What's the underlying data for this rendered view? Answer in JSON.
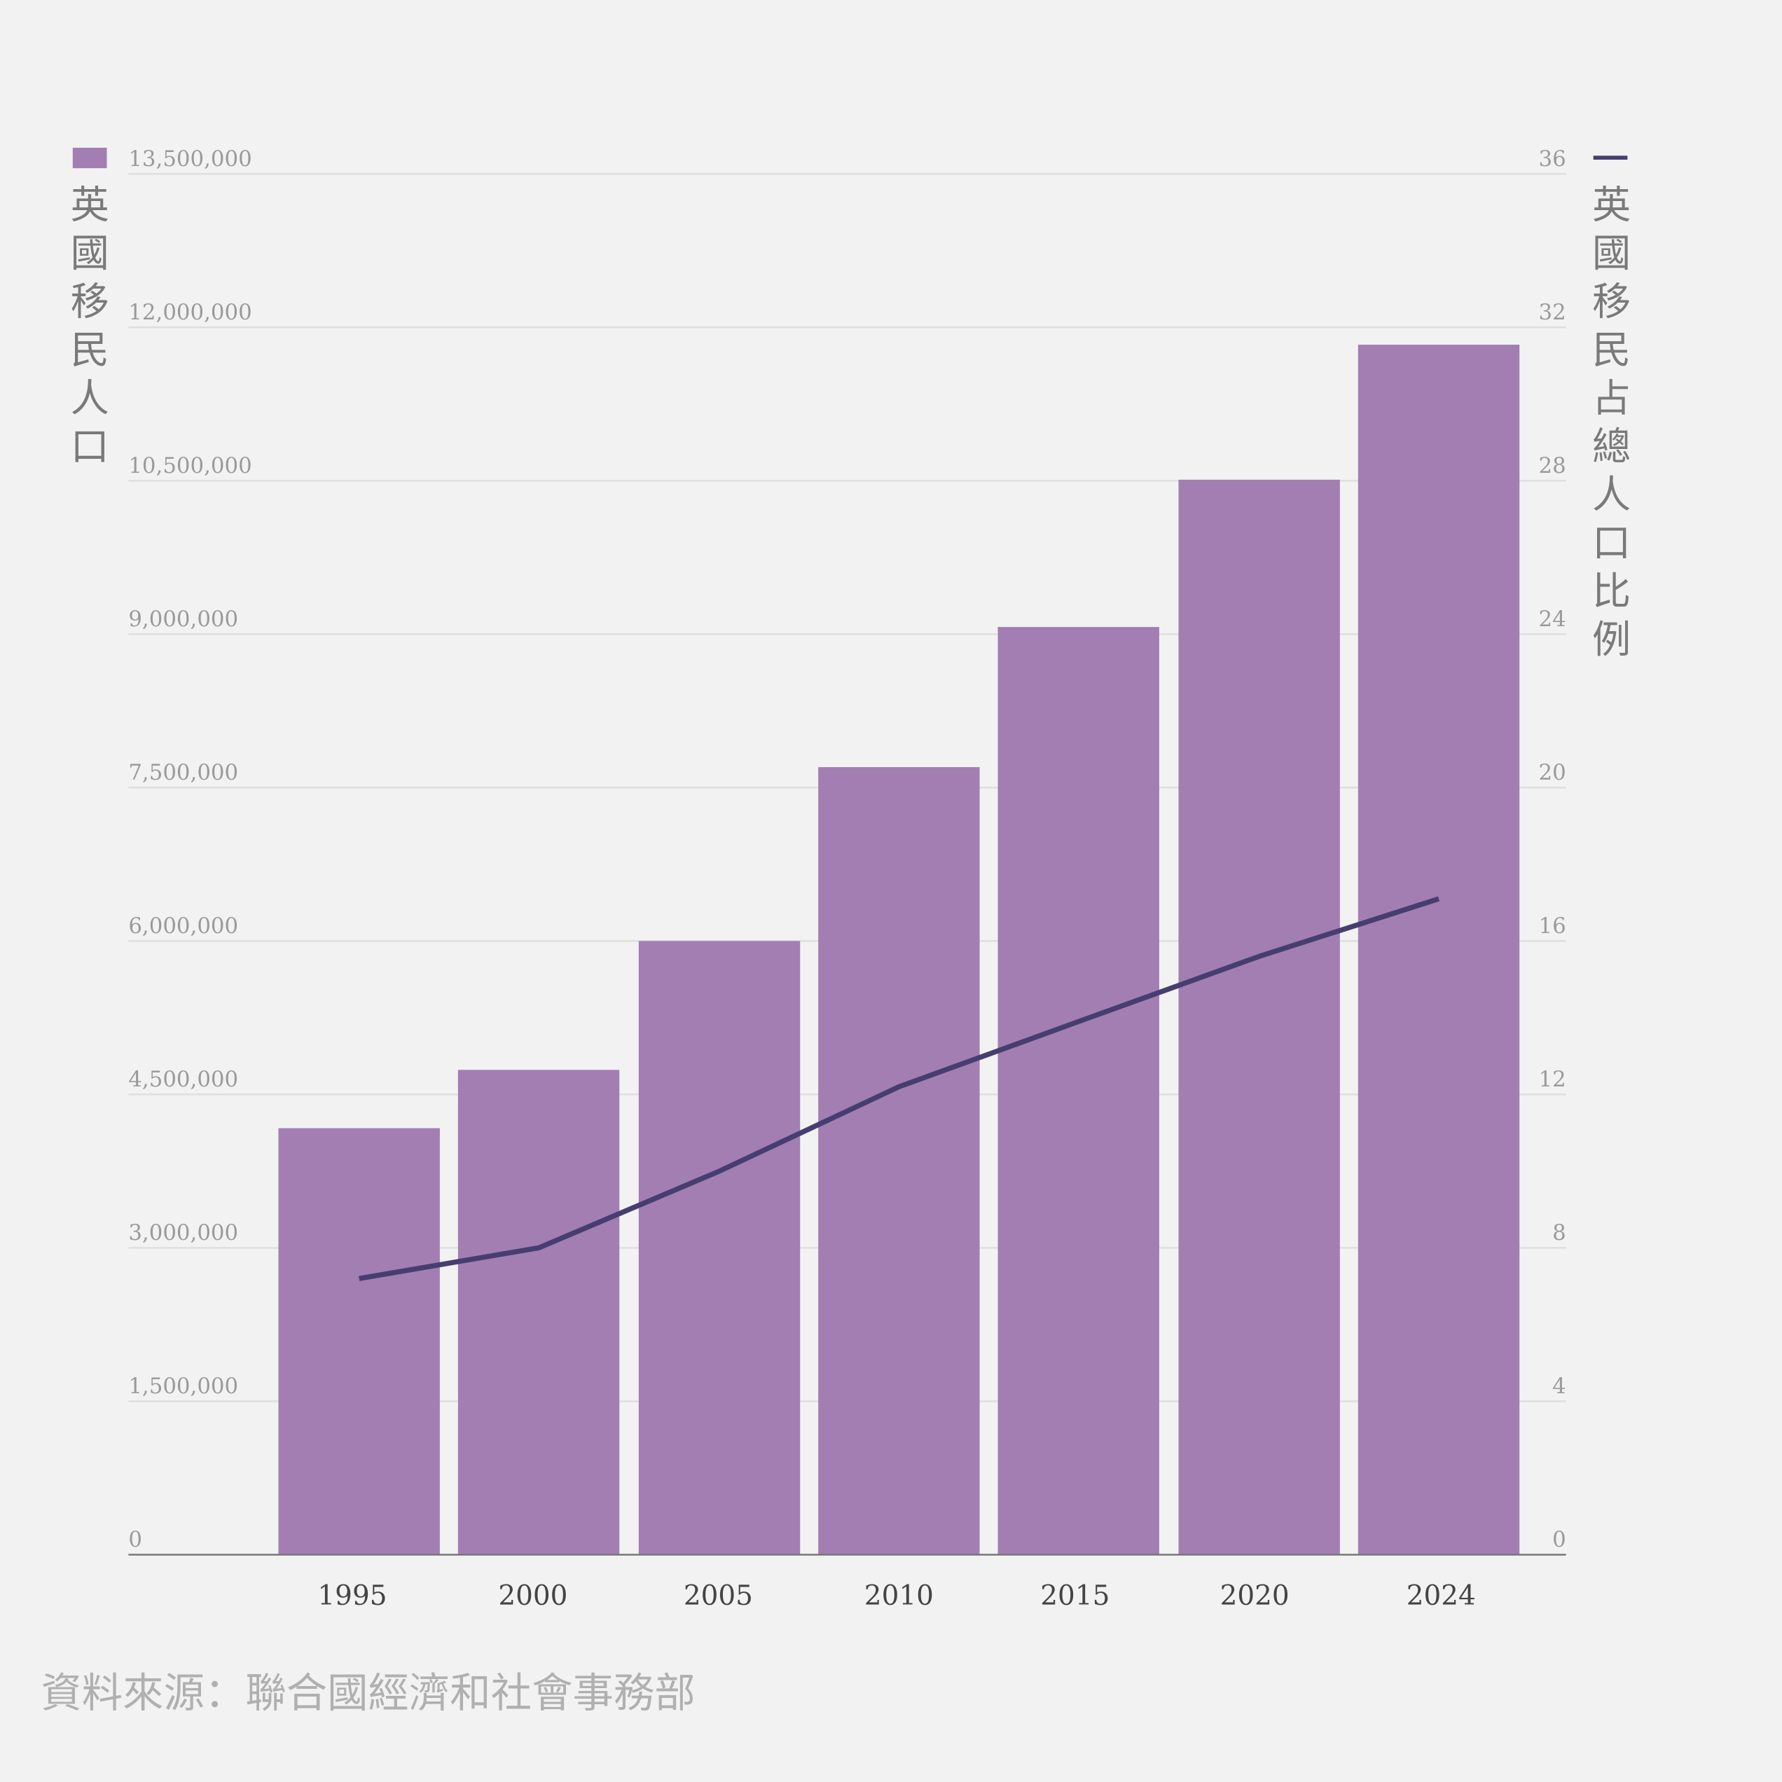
{
  "chart_data": {
    "type": "bar+line",
    "categories": [
      "1995",
      "2000",
      "2005",
      "2010",
      "2015",
      "2020",
      "2024"
    ],
    "series": [
      {
        "name": "英國移民人口",
        "type": "bar",
        "axis": "left",
        "color": "#a27eb3",
        "values": [
          4170000,
          4740000,
          6000000,
          7700000,
          9070000,
          10510000,
          11830000
        ]
      },
      {
        "name": "英國移民占總人口比例",
        "type": "line",
        "axis": "right",
        "color": "#463e70",
        "values": [
          7.2,
          8.0,
          10.0,
          12.2,
          13.9,
          15.6,
          17.1
        ]
      }
    ],
    "left_axis": {
      "title": "英國移民人口",
      "ylim": [
        0,
        13500000
      ],
      "ticks": [
        "0",
        "1,500,000",
        "3,000,000",
        "4,500,000",
        "6,000,000",
        "7,500,000",
        "9,000,000",
        "10,500,000",
        "12,000,000",
        "13,500,000"
      ]
    },
    "right_axis": {
      "title": "英國移民占總人口比例",
      "ylim": [
        0,
        36
      ],
      "ticks": [
        "0",
        "4",
        "8",
        "12",
        "16",
        "20",
        "24",
        "28",
        "32",
        "36"
      ]
    },
    "grid": true,
    "source": "資料來源：聯合國經濟和社會事務部"
  }
}
